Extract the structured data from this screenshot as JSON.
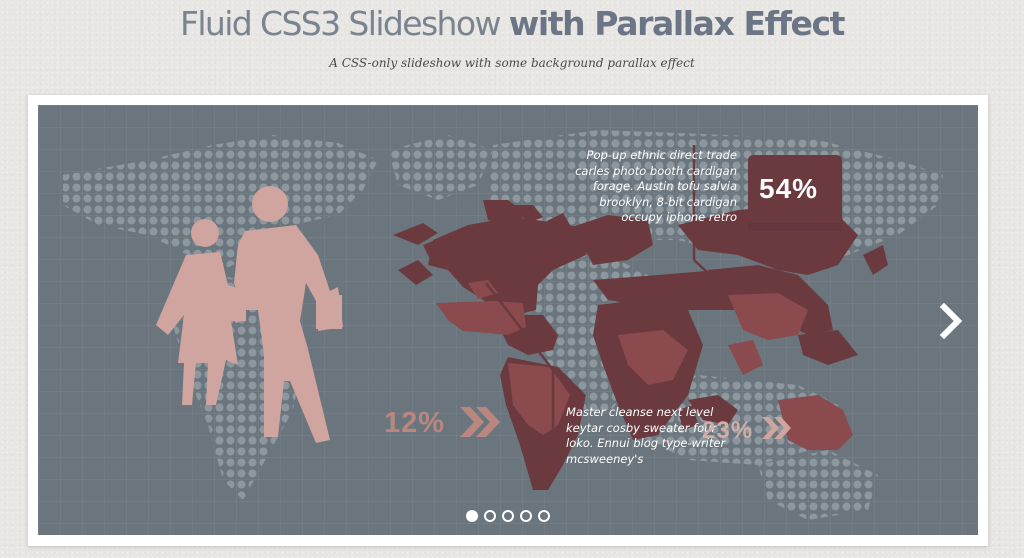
{
  "header": {
    "title_light": "Fluid CSS3 Slideshow",
    "title_bold": "with Parallax Effect",
    "subtitle": "A CSS-only slideshow with some background parallax effect"
  },
  "slide": {
    "text_top": "Pop-up ethnic direct trade carles photo booth cardigan forage. Austin tofu salvia brooklyn, 8-bit cardigan occupy iphone retro",
    "text_bottom": "Master cleanse next level keytar cosby sweater four loko. Ennui blog type-writer  mcsweeney's",
    "stat_left": "12%",
    "stat_right": "23%",
    "stat_callout": "54%"
  },
  "icons": {
    "next": "chevron-right-icon",
    "people": "people-walking-icon",
    "arrows": "double-chevron-right-icon"
  },
  "colors": {
    "slide_bg": "#6b757d",
    "map_dark": "#6b3a3f",
    "map_light": "#8a4a4e",
    "figure": "#d0a49f"
  },
  "pagination": {
    "count": 5,
    "active_index": 0
  }
}
